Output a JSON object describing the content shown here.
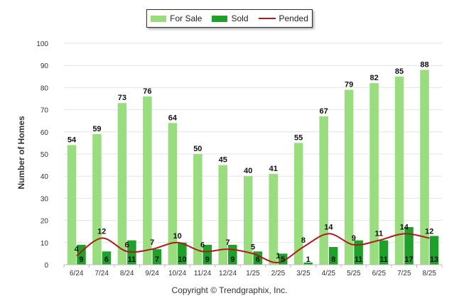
{
  "chart_data": {
    "type": "bar",
    "ylabel": "Number of Homes",
    "ylim": [
      0,
      100
    ],
    "yticks": [
      0,
      10,
      20,
      30,
      40,
      50,
      60,
      70,
      80,
      90,
      100
    ],
    "categories": [
      "6/24",
      "7/24",
      "8/24",
      "9/24",
      "10/24",
      "11/24",
      "12/24",
      "1/25",
      "2/25",
      "3/25",
      "4/25",
      "5/25",
      "6/25",
      "7/25",
      "8/25"
    ],
    "series": [
      {
        "name": "For Sale",
        "kind": "bar",
        "color": "#99dd7f",
        "values": [
          54,
          59,
          73,
          76,
          64,
          50,
          45,
          40,
          41,
          55,
          67,
          79,
          82,
          85,
          88
        ]
      },
      {
        "name": "Sold",
        "kind": "bar",
        "color": "#1fa02a",
        "values": [
          9,
          6,
          11,
          7,
          10,
          9,
          9,
          6,
          5,
          1,
          8,
          11,
          11,
          17,
          13
        ]
      },
      {
        "name": "Pended",
        "kind": "line",
        "color": "#b01a1a",
        "values": [
          4,
          12,
          6,
          7,
          10,
          6,
          7,
          5,
          1,
          8,
          14,
          9,
          11,
          14,
          12
        ]
      }
    ],
    "grid": true,
    "legend": "top-center"
  },
  "footer": {
    "copyright": "Copyright © Trendgraphix, Inc."
  }
}
